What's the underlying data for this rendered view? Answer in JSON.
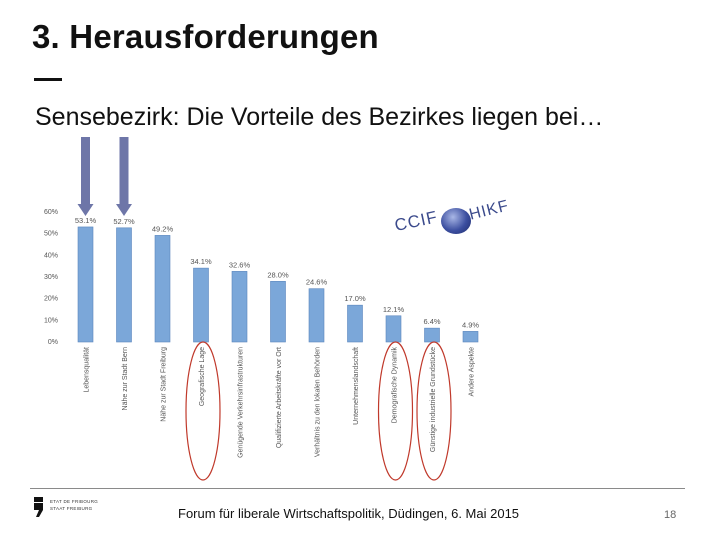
{
  "slide": {
    "title": "3. Herausforderungen",
    "subtitle": "Sensebezirk: Die Vorteile des Bezirkes liegen bei…",
    "footer": "Forum für liberale Wirtschaftspolitik, Düdingen, 6. Mai 2015",
    "page_number": "18"
  },
  "logos": {
    "ccif": "CCIF",
    "hikf": "HIKF",
    "etat_line1": "ETAT DE FRIBOURG",
    "etat_line2": "STAAT FREIBURG"
  },
  "colors": {
    "bar": "#7ba7d9",
    "bar_edge": "#5a86bd",
    "arrow": "#6e76a8",
    "ellipse": "#c0392b",
    "axis_text": "#555555"
  },
  "chart_data": {
    "type": "bar",
    "categories": [
      "Lebensqualität",
      "Nähe zur Stadt Bern",
      "Nähe zur Stadt Freiburg",
      "Geografische Lage",
      "Genügende Verkehrsinfrastrukturen",
      "Qualifizierte Arbeitskräfte vor Ort",
      "Verhältnis zu den lokalen Behörden",
      "Unternehmenslandschaft",
      "Demografische Dynamik",
      "Günstige industrielle Grundstücke",
      "Andere Aspekte"
    ],
    "values": [
      53.1,
      52.7,
      49.2,
      34.1,
      32.6,
      28.0,
      24.6,
      17.0,
      12.1,
      6.4,
      4.9
    ],
    "value_labels": [
      "53.1%",
      "52.7%",
      "49.2%",
      "34.1%",
      "32.6%",
      "28.0%",
      "24.6%",
      "17.0%",
      "12.1%",
      "6.4%",
      "4.9%"
    ],
    "y_ticks": [
      0,
      10,
      20,
      30,
      40,
      50,
      60
    ],
    "y_tick_labels": [
      "0%",
      "10%",
      "20%",
      "30%",
      "40%",
      "50%",
      "60%"
    ],
    "ylim": [
      0,
      60
    ],
    "arrows_on": [
      0,
      1
    ],
    "circled": [
      3,
      8,
      9
    ]
  }
}
